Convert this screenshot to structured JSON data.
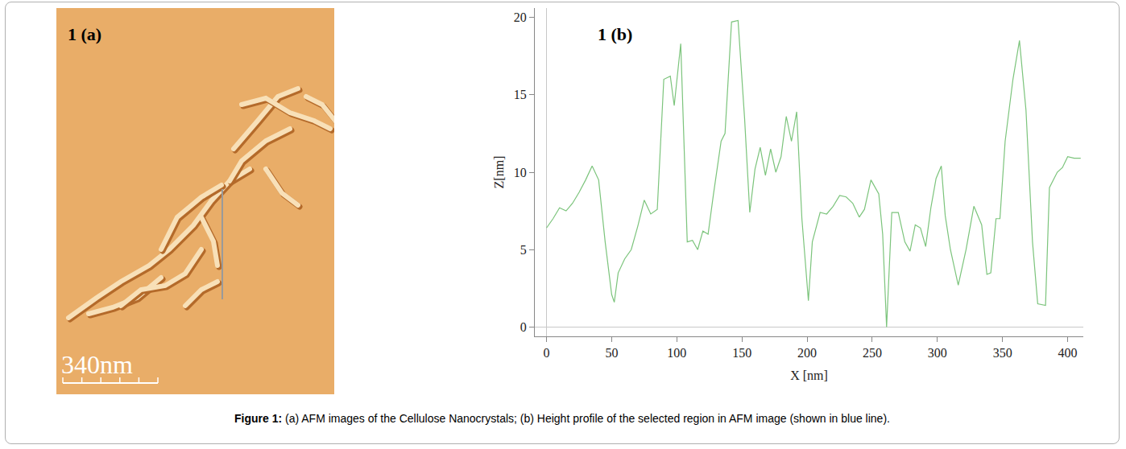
{
  "chart_data": {
    "type": "line",
    "panel_label": "1 (b)",
    "x_label": "X [nm]",
    "y_label": "Z[nm]",
    "x": [
      0,
      5,
      10,
      15,
      20,
      25,
      30,
      35,
      40,
      45,
      50,
      52,
      55,
      60,
      65,
      70,
      75,
      80,
      85,
      90,
      95,
      98,
      103,
      108,
      112,
      116,
      120,
      124,
      128,
      134,
      137,
      142,
      147,
      152,
      156,
      160,
      164,
      168,
      172,
      176,
      180,
      184,
      188,
      192,
      196,
      201,
      204,
      210,
      215,
      220,
      225,
      230,
      235,
      240,
      244,
      249,
      255,
      258,
      261,
      265,
      270,
      275,
      279,
      283,
      287,
      291,
      295,
      299,
      303,
      306,
      310,
      316,
      322,
      328,
      334,
      338,
      341,
      345,
      348,
      352,
      358,
      363,
      368,
      373,
      377,
      383,
      386,
      392,
      396,
      400,
      405,
      410
    ],
    "values": [
      6.4,
      7.0,
      7.7,
      7.5,
      8.0,
      8.7,
      9.5,
      10.4,
      9.5,
      5.5,
      2.1,
      1.6,
      3.5,
      4.4,
      5.0,
      6.5,
      8.2,
      7.3,
      7.6,
      16.0,
      16.2,
      14.3,
      18.3,
      5.5,
      5.6,
      5.0,
      6.2,
      6.0,
      8.5,
      12.0,
      12.5,
      19.7,
      19.8,
      13.5,
      7.4,
      10.2,
      11.6,
      9.8,
      11.5,
      10.0,
      11.0,
      13.6,
      12.0,
      13.9,
      7.0,
      1.7,
      5.5,
      7.4,
      7.3,
      7.8,
      8.5,
      8.4,
      8.0,
      7.1,
      7.6,
      9.5,
      8.6,
      6.0,
      0.0,
      7.4,
      7.4,
      5.5,
      4.9,
      6.6,
      6.4,
      5.2,
      7.7,
      9.6,
      10.4,
      7.2,
      5.0,
      2.7,
      5.0,
      7.8,
      6.6,
      3.4,
      3.5,
      7.0,
      7.0,
      12.0,
      16.0,
      18.5,
      14.0,
      5.5,
      1.5,
      1.4,
      9.0,
      10.0,
      10.3,
      11.0,
      10.9,
      10.9
    ],
    "color": "#7cc47c",
    "xlim": [
      -9,
      412
    ],
    "ylim": [
      -0.6,
      20.6
    ],
    "xticks": [
      0,
      50,
      100,
      150,
      200,
      250,
      300,
      350,
      400
    ],
    "yticks": [
      0,
      5,
      10,
      15,
      20
    ],
    "grid": false
  },
  "panel_a": {
    "label": "1 (a)",
    "scale_bar": "340nm"
  },
  "caption": {
    "label": "Figure 1:",
    "text": "(a) AFM images of the Cellulose Nanocrystals; (b) Height profile of the selected region in AFM image (shown in blue line)."
  }
}
